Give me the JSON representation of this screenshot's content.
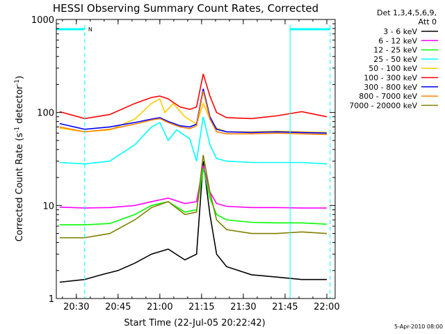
{
  "chart_data": {
    "type": "line",
    "title": "HESSI Observing Summary Count Rates, Corrected",
    "xlabel": "Start Time (22-Jul-05 20:22:42)",
    "ylabel_main": "Corrected Count Rate (s",
    "ylabel_sup1": "-1",
    "ylabel_mid": " detector",
    "ylabel_sup2": "-1",
    "ylabel_end": ")",
    "date_stamp": "5-Apr-2010 08:00",
    "y_scale": "log",
    "ylim": [
      1,
      1000
    ],
    "y_ticks": [
      {
        "value": 1,
        "label": "1"
      },
      {
        "value": 10,
        "label": "10"
      },
      {
        "value": 100,
        "label": "100"
      },
      {
        "value": 1000,
        "label": "1000"
      }
    ],
    "xlim_minutes": [
      20.38,
      22.05
    ],
    "x_ticks": [
      {
        "value": 20.5,
        "label": "20:30"
      },
      {
        "value": 20.75,
        "label": "20:45"
      },
      {
        "value": 21.0,
        "label": "21:00"
      },
      {
        "value": 21.25,
        "label": "21:15"
      },
      {
        "value": 21.5,
        "label": "21:30"
      },
      {
        "value": 21.75,
        "label": "21:45"
      },
      {
        "value": 22.0,
        "label": "22:00"
      }
    ],
    "legend_header_1": "Det 1,3,4,5,6,9,",
    "legend_header_2": "Att 0",
    "legend_placement": "top-right outside",
    "night_marker_label": "N",
    "night_intervals": [
      [
        20.38,
        20.55
      ],
      [
        21.78,
        22.02
      ]
    ],
    "series": [
      {
        "name": "3 - 6 keV",
        "color": "#000000",
        "x": [
          20.4,
          20.55,
          20.65,
          20.75,
          20.85,
          20.95,
          21.05,
          21.15,
          21.22,
          21.26,
          21.3,
          21.34,
          21.4,
          21.55,
          21.7,
          21.85,
          22.0
        ],
        "y": [
          1.5,
          1.6,
          1.8,
          2.0,
          2.4,
          3.0,
          3.4,
          2.6,
          3.0,
          30,
          8,
          3.0,
          2.2,
          1.8,
          1.7,
          1.6,
          1.6
        ]
      },
      {
        "name": "6 - 12 keV",
        "color": "#ff00ff",
        "x": [
          20.4,
          20.55,
          20.7,
          20.85,
          20.95,
          21.05,
          21.15,
          21.22,
          21.26,
          21.3,
          21.34,
          21.4,
          21.55,
          21.7,
          21.85,
          22.0
        ],
        "y": [
          9.6,
          9.4,
          9.5,
          10,
          11,
          12,
          10.5,
          11,
          27,
          14,
          10.5,
          9.8,
          9.5,
          9.5,
          9.4,
          9.4
        ]
      },
      {
        "name": "12 - 25 keV",
        "color": "#00ff00",
        "x": [
          20.4,
          20.55,
          20.7,
          20.85,
          20.95,
          21.05,
          21.15,
          21.22,
          21.26,
          21.3,
          21.34,
          21.4,
          21.55,
          21.7,
          21.85,
          22.0
        ],
        "y": [
          6.2,
          6.2,
          6.4,
          8,
          10,
          11,
          8.5,
          9,
          25,
          12,
          8,
          7,
          6.6,
          6.5,
          6.5,
          6.3
        ]
      },
      {
        "name": "25 - 50 keV",
        "color": "#00ffff",
        "x": [
          20.4,
          20.55,
          20.7,
          20.85,
          20.95,
          21.0,
          21.05,
          21.1,
          21.18,
          21.22,
          21.26,
          21.3,
          21.34,
          21.4,
          21.55,
          21.7,
          21.85,
          22.0
        ],
        "y": [
          29,
          28,
          30,
          45,
          70,
          78,
          50,
          65,
          52,
          30,
          90,
          45,
          32,
          30,
          29,
          29,
          29,
          28
        ]
      },
      {
        "name": "50 - 100 keV",
        "color": "#ffcc00",
        "x": [
          20.4,
          20.55,
          20.7,
          20.85,
          20.95,
          21.0,
          21.03,
          21.08,
          21.15,
          21.22,
          21.26,
          21.3,
          21.34,
          21.4,
          21.55,
          21.7,
          21.85,
          22.0
        ],
        "y": [
          68,
          62,
          65,
          85,
          125,
          140,
          100,
          125,
          90,
          75,
          125,
          85,
          68,
          62,
          62,
          63,
          62,
          61
        ]
      },
      {
        "name": "100 - 300 keV",
        "color": "#ff0000",
        "x": [
          20.4,
          20.55,
          20.7,
          20.85,
          20.95,
          21.0,
          21.05,
          21.12,
          21.18,
          21.22,
          21.26,
          21.3,
          21.34,
          21.4,
          21.55,
          21.7,
          21.85,
          22.0
        ],
        "y": [
          102,
          86,
          95,
          125,
          145,
          150,
          140,
          115,
          108,
          115,
          260,
          150,
          100,
          88,
          86,
          92,
          102,
          90
        ]
      },
      {
        "name": "300 - 800 keV",
        "color": "#0000ff",
        "x": [
          20.4,
          20.55,
          20.7,
          20.85,
          20.95,
          21.0,
          21.05,
          21.12,
          21.18,
          21.22,
          21.26,
          21.3,
          21.34,
          21.4,
          21.55,
          21.7,
          21.85,
          22.0
        ],
        "y": [
          76,
          66,
          70,
          78,
          85,
          88,
          80,
          72,
          70,
          75,
          180,
          90,
          66,
          62,
          61,
          62,
          61,
          60
        ]
      },
      {
        "name": "800 - 7000 keV",
        "color": "#ff8000",
        "x": [
          20.4,
          20.55,
          20.7,
          20.85,
          20.95,
          21.0,
          21.05,
          21.12,
          21.18,
          21.22,
          21.26,
          21.3,
          21.34,
          21.4,
          21.55,
          21.7,
          21.85,
          22.0
        ],
        "y": [
          70,
          62,
          66,
          75,
          83,
          86,
          78,
          70,
          67,
          72,
          170,
          85,
          62,
          59,
          59,
          60,
          59,
          58
        ]
      },
      {
        "name": "7000 - 20000 keV",
        "color": "#808000",
        "x": [
          20.4,
          20.55,
          20.7,
          20.85,
          20.95,
          21.05,
          21.15,
          21.22,
          21.26,
          21.3,
          21.34,
          21.4,
          21.55,
          21.7,
          21.85,
          22.0
        ],
        "y": [
          4.5,
          4.5,
          5,
          7,
          9.5,
          11,
          8,
          8.5,
          35,
          14,
          7,
          5.5,
          5,
          5,
          5.2,
          5
        ]
      }
    ]
  }
}
